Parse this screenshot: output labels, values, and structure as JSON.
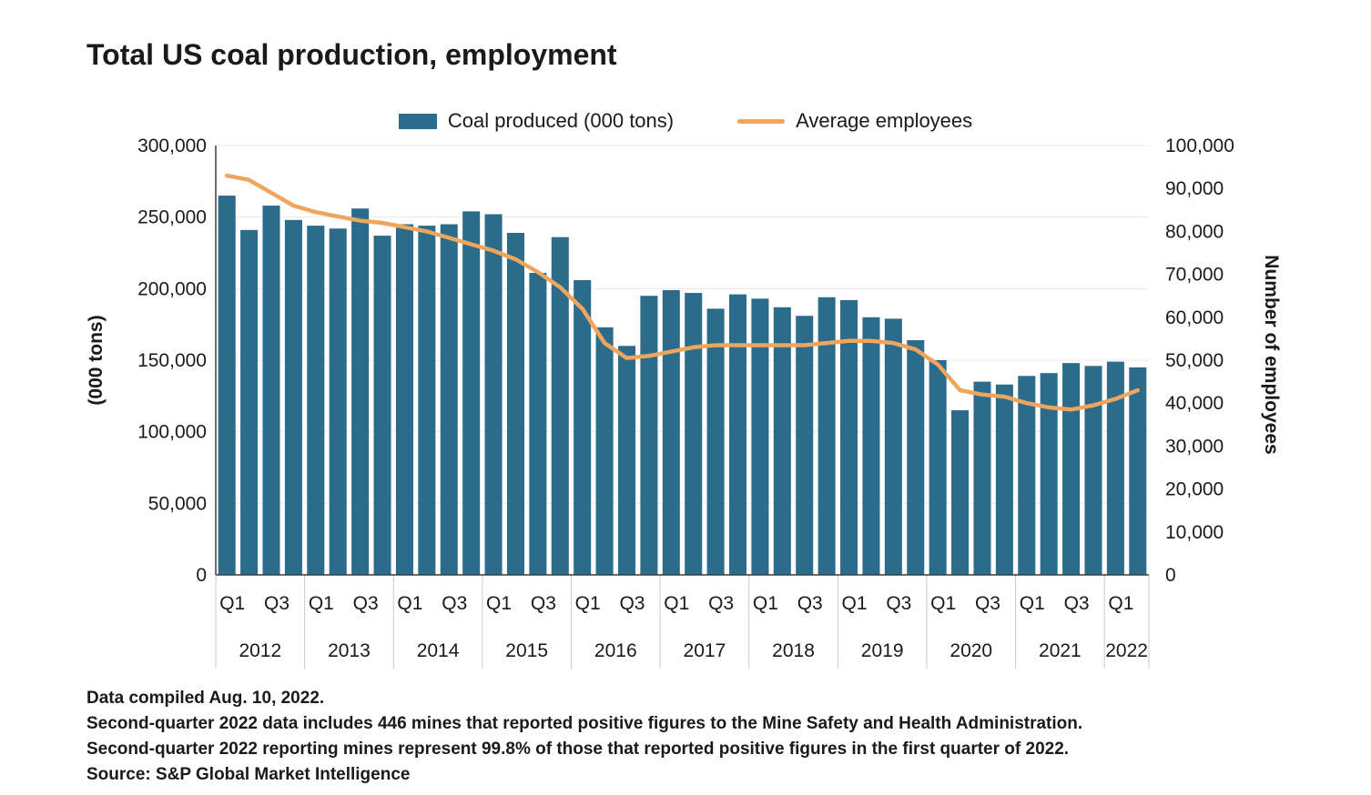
{
  "colors": {
    "bar": "#2b6b8c",
    "line": "#f0a55c",
    "grid": "#e9e9e9",
    "separator": "#c9c9c9",
    "axis": "#3c3c3c",
    "text": "#1a1a1a"
  },
  "footnotes": [
    "Data compiled Aug. 10, 2022.",
    "Second-quarter 2022 data includes 446 mines that reported positive figures to the Mine Safety and Health Administration.",
    "Second-quarter 2022 reporting mines represent 99.8% of those that reported positive figures in the first quarter of 2022.",
    "Source: S&P Global Market Intelligence"
  ],
  "chart_data": {
    "type": "bar",
    "title": "Total US coal production, employment",
    "x": [
      "2012 Q1",
      "2012 Q2",
      "2012 Q3",
      "2012 Q4",
      "2013 Q1",
      "2013 Q2",
      "2013 Q3",
      "2013 Q4",
      "2014 Q1",
      "2014 Q2",
      "2014 Q3",
      "2014 Q4",
      "2015 Q1",
      "2015 Q2",
      "2015 Q3",
      "2015 Q4",
      "2016 Q1",
      "2016 Q2",
      "2016 Q3",
      "2016 Q4",
      "2017 Q1",
      "2017 Q2",
      "2017 Q3",
      "2017 Q4",
      "2018 Q1",
      "2018 Q2",
      "2018 Q3",
      "2018 Q4",
      "2019 Q1",
      "2019 Q2",
      "2019 Q3",
      "2019 Q4",
      "2020 Q1",
      "2020 Q2",
      "2020 Q3",
      "2020 Q4",
      "2021 Q1",
      "2021 Q2",
      "2021 Q3",
      "2021 Q4",
      "2022 Q1",
      "2022 Q2"
    ],
    "years": [
      {
        "label": "2012",
        "quarters": 4
      },
      {
        "label": "2013",
        "quarters": 4
      },
      {
        "label": "2014",
        "quarters": 4
      },
      {
        "label": "2015",
        "quarters": 4
      },
      {
        "label": "2016",
        "quarters": 4
      },
      {
        "label": "2017",
        "quarters": 4
      },
      {
        "label": "2018",
        "quarters": 4
      },
      {
        "label": "2019",
        "quarters": 4
      },
      {
        "label": "2020",
        "quarters": 4
      },
      {
        "label": "2021",
        "quarters": 4
      },
      {
        "label": "2022",
        "quarters": 2
      }
    ],
    "series": [
      {
        "name": "Coal produced (000 tons)",
        "type": "bar",
        "axis": "left",
        "values": [
          265000,
          241000,
          258000,
          248000,
          244000,
          242000,
          256000,
          237000,
          245000,
          244000,
          245000,
          254000,
          252000,
          239000,
          211000,
          236000,
          206000,
          173000,
          160000,
          195000,
          199000,
          197000,
          186000,
          196000,
          193000,
          187000,
          181000,
          194000,
          192000,
          180000,
          179000,
          164000,
          150000,
          115000,
          135000,
          133000,
          139000,
          141000,
          148000,
          146000,
          149000,
          145000
        ]
      },
      {
        "name": "Average employees",
        "type": "line",
        "axis": "right",
        "values": [
          93000,
          92000,
          89000,
          86000,
          84500,
          83500,
          82500,
          82000,
          81000,
          80000,
          78500,
          77000,
          75500,
          73500,
          70500,
          67000,
          62000,
          54000,
          50500,
          51000,
          52000,
          53000,
          53500,
          53500,
          53500,
          53500,
          53500,
          54000,
          54500,
          54500,
          54000,
          52500,
          49000,
          43000,
          42000,
          41500,
          40000,
          39000,
          38500,
          39500,
          41000,
          43000
        ]
      }
    ],
    "left_axis": {
      "label": "(000 tons)",
      "range": [
        0,
        300000
      ],
      "tick_step": 50000
    },
    "right_axis": {
      "label": "Number of employees",
      "range": [
        0,
        100000
      ],
      "tick_step": 10000
    },
    "quarter_tick_labels": [
      "Q1",
      "Q3"
    ],
    "legend_position": "top-center",
    "grid": true
  }
}
